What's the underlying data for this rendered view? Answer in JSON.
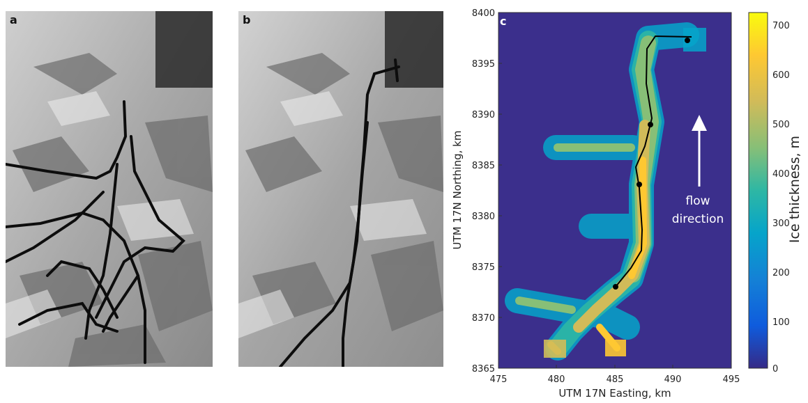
{
  "panels": {
    "a": {
      "label": "a"
    },
    "b": {
      "label": "b"
    },
    "c": {
      "label": "c"
    }
  },
  "map": {
    "xlabel": "UTM 17N Easting, km",
    "ylabel": "UTM 17N Northing, km",
    "x_ticks": [
      "475",
      "480",
      "485",
      "490",
      "495"
    ],
    "y_ticks": [
      "8365",
      "8370",
      "8375",
      "8380",
      "8385",
      "8390",
      "8395",
      "8400"
    ],
    "annotation_line1": "flow",
    "annotation_line2": "direction",
    "background_color": "#3b2f8c"
  },
  "colorbar": {
    "label": "Ice thickness, m",
    "ticks": [
      "0",
      "100",
      "200",
      "300",
      "400",
      "500",
      "600",
      "700"
    ],
    "colors": [
      "#352a87",
      "#0f5cdd",
      "#1481d6",
      "#06a4ca",
      "#2eb7a4",
      "#87bf77",
      "#d1bb59",
      "#fec832",
      "#f9fb0e"
    ]
  }
}
